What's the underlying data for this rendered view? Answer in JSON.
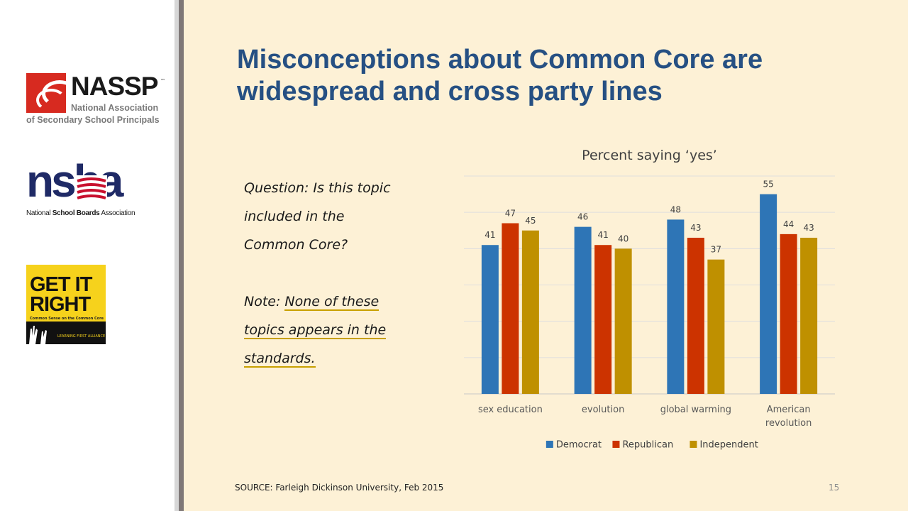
{
  "slide": {
    "title_line1": "Misconceptions about Common Core are",
    "title_line2": "widespread and cross party lines",
    "question_lines": [
      "Question: Is this topic",
      "included in the",
      "Common Core?"
    ],
    "note_prefix": "Note: ",
    "note_lines": [
      "None of these",
      "topics appears in the",
      "standards."
    ],
    "source": "SOURCE: Farleigh Dickinson University, Feb 2015",
    "page_number": "15"
  },
  "logos": {
    "nassp": {
      "name": "NASSP",
      "tm": "™",
      "line1": "National Association",
      "line2": "of Secondary School Principals"
    },
    "nsba": {
      "word": "nsba",
      "line1_pre": "National ",
      "line1_bold": "School Boards",
      "line1_post": " Association"
    },
    "get_it_right": {
      "line1": "GET IT",
      "line2": "RIGHT",
      "tagline": "Common Sense on the Common Core",
      "alliance": "LEARNING FIRST ALLIANCE"
    }
  },
  "colors": {
    "background": "#fdf1d6",
    "title": "#265083",
    "democrat": "#2e75b6",
    "republican": "#cc3300",
    "independent": "#bf9000"
  },
  "chart_data": {
    "type": "bar",
    "title": "Percent saying ‘yes’",
    "categories": [
      [
        "sex education"
      ],
      [
        "evolution"
      ],
      [
        "global warming"
      ],
      [
        "American",
        "revolution"
      ]
    ],
    "series": [
      {
        "name": "Democrat",
        "color": "#2e75b6",
        "values": [
          41,
          46,
          48,
          55
        ]
      },
      {
        "name": "Republican",
        "color": "#cc3300",
        "values": [
          47,
          41,
          43,
          44
        ]
      },
      {
        "name": "Independent",
        "color": "#bf9000",
        "values": [
          45,
          40,
          37,
          43
        ]
      }
    ],
    "ylim": [
      0,
      60
    ],
    "gridlines": true,
    "data_labels": true,
    "legend_position": "bottom"
  }
}
